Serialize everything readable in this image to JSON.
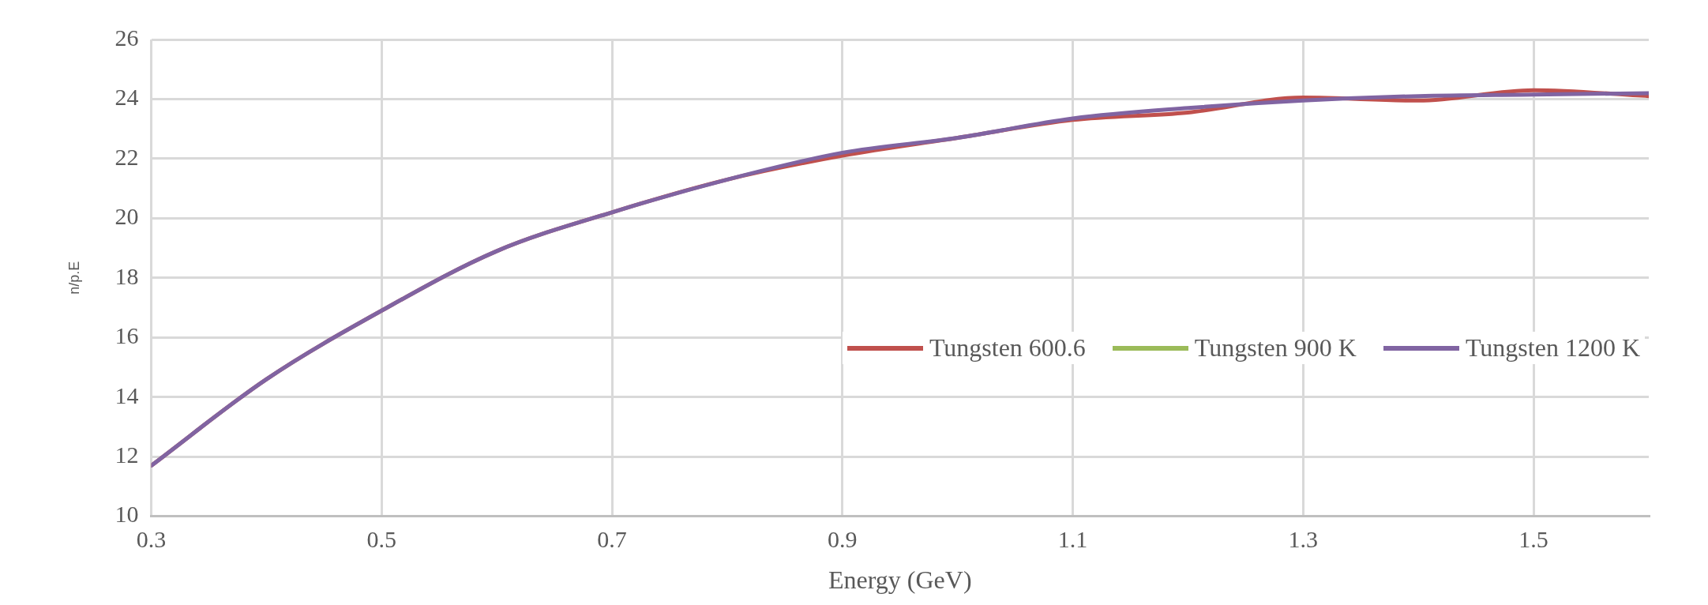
{
  "chart_data": {
    "type": "line",
    "xlabel": "Energy (GeV)",
    "ylabel": "n/p.E",
    "x": [
      0.3,
      0.4,
      0.5,
      0.6,
      0.7,
      0.8,
      0.9,
      1.0,
      1.1,
      1.2,
      1.3,
      1.4,
      1.5,
      1.6
    ],
    "series": [
      {
        "name": "Tungsten 600.6",
        "color": "#c0504d",
        "values": [
          11.7,
          14.6,
          16.9,
          18.9,
          20.2,
          21.3,
          22.1,
          22.7,
          23.3,
          23.55,
          24.05,
          23.95,
          24.3,
          24.1
        ]
      },
      {
        "name": "Tungsten 900 K",
        "color": "#9bbb59",
        "values": [
          null,
          null,
          null,
          null,
          null,
          null,
          null,
          null,
          null,
          null,
          null,
          null,
          null,
          null
        ]
      },
      {
        "name": "Tungsten 1200 K",
        "color": "#8064a2",
        "values": [
          11.7,
          14.6,
          16.9,
          18.9,
          20.2,
          21.3,
          22.2,
          22.7,
          23.35,
          23.7,
          23.95,
          24.1,
          24.15,
          24.2
        ]
      }
    ],
    "xlim": [
      0.3,
      1.6
    ],
    "xticks": [
      0.3,
      0.5,
      0.7,
      0.9,
      1.1,
      1.3,
      1.5
    ],
    "ylim": [
      10,
      26
    ],
    "yticks": [
      10,
      12,
      14,
      16,
      18,
      20,
      22,
      24,
      26
    ],
    "grid": true,
    "legend": "right",
    "marker": "none",
    "line_style": "solid"
  }
}
